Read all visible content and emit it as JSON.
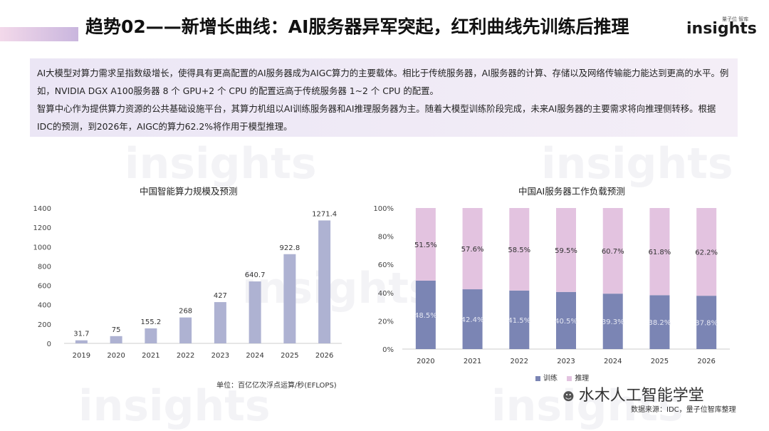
{
  "header": {
    "title": "趋势02——新增长曲线：AI服务器异军突起，红利曲线先训练后推理",
    "logo_small": "量子位 智库",
    "logo_main": "insights"
  },
  "intro": {
    "line1": "AI大模型对算力需求呈指数级增长，使得具有更高配置的AI服务器成为AIGC算力的主要载体。相比于传统服务器，AI服务器的计算、存储以及网络传输能力能达到更高的水平。例如，NVIDIA DGX A100服务器 8 个 GPU+2 个 CPU 的配置远高于传统服务器 1~2 个 CPU 的配置。",
    "line2": "智算中心作为提供算力资源的公共基础设施平台，其算力机组以AI训练服务器和AI推理服务器为主。随着大模型训练阶段完成，未来AI服务器的主要需求将向推理侧转移。根据IDC的预测，到2026年，AIGC的算力62.2%将作用于模型推理。"
  },
  "footer": {
    "unit": "单位：百亿亿次浮点运算/秒(EFLOPS)",
    "source": "数据来源：IDC，量子位智库整理",
    "wechat": "水木人工智能学堂"
  },
  "colors": {
    "bar_left": "#aeb2d2",
    "train": "#7b85b4",
    "infer": "#e3c3e0"
  },
  "chart_data": [
    {
      "type": "bar",
      "title": "中国智能算力规模及预测",
      "categories": [
        "2019",
        "2020",
        "2021",
        "2022",
        "2023",
        "2024",
        "2025",
        "2026"
      ],
      "values": [
        31.7,
        75,
        155.2,
        268,
        427,
        640.7,
        922.8,
        1271.4
      ],
      "labels": [
        "31.7",
        "75",
        "155.2",
        "268",
        "427",
        "640.7",
        "922.8",
        "1271.4"
      ],
      "ylim": [
        0,
        1400
      ],
      "yticks": [
        "0",
        "200",
        "400",
        "600",
        "800",
        "1000",
        "1200",
        "1400"
      ],
      "grid": false
    },
    {
      "type": "bar",
      "stacked": true,
      "title": "中国AI服务器工作负载预测",
      "categories": [
        "2020",
        "2021",
        "2022",
        "2023",
        "2024",
        "2025",
        "2026"
      ],
      "series": [
        {
          "name": "训练",
          "values": [
            48.5,
            42.4,
            41.5,
            40.5,
            39.3,
            38.2,
            37.8
          ],
          "labels": [
            "48.5%",
            "42.4%",
            "41.5%",
            "40.5%",
            "39.3%",
            "38.2%",
            "37.8%"
          ]
        },
        {
          "name": "推理",
          "values": [
            51.5,
            57.6,
            58.5,
            59.5,
            60.7,
            61.8,
            62.2
          ],
          "labels": [
            "51.5%",
            "57.6%",
            "58.5%",
            "59.5%",
            "60.7%",
            "61.8%",
            "62.2%"
          ]
        }
      ],
      "ylim": [
        0,
        100
      ],
      "yticks": [
        "0%",
        "20%",
        "40%",
        "60%",
        "80%",
        "100%"
      ],
      "legend_position": "bottom"
    }
  ]
}
